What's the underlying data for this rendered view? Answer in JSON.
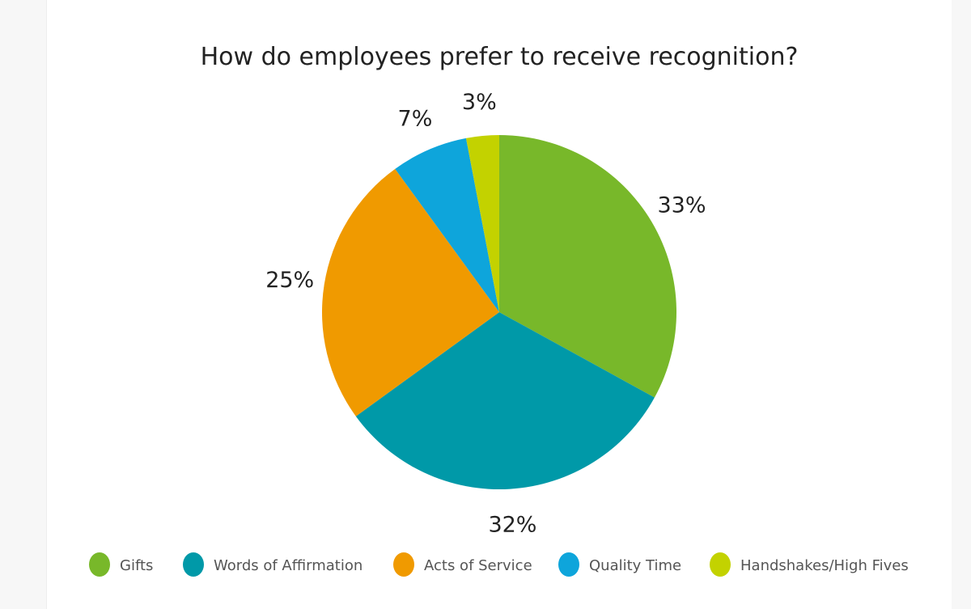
{
  "chart_data": {
    "type": "pie",
    "title": "How do employees prefer to receive recognition?",
    "slices": [
      {
        "label": "Gifts",
        "value": 33,
        "display": "33%",
        "color": "#78b82a"
      },
      {
        "label": "Words of Affirmation",
        "value": 32,
        "display": "32%",
        "color": "#0099a8"
      },
      {
        "label": "Acts of Service",
        "value": 25,
        "display": "25%",
        "color": "#f09a00"
      },
      {
        "label": "Quality Time",
        "value": 7,
        "display": "7%",
        "color": "#0ea5db"
      },
      {
        "label": "Handshakes/High Fives",
        "value": 3,
        "display": "3%",
        "color": "#c3d200"
      }
    ],
    "start_angle": "12 o'clock",
    "direction": "clockwise",
    "legend_position": "bottom"
  }
}
